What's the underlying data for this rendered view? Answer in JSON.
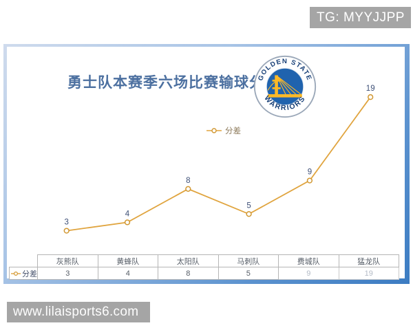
{
  "header": {
    "telegram_label": "TG: MYYJJPP"
  },
  "footer": {
    "website_label": "www.lilaisports6.com"
  },
  "chart_data": {
    "type": "line",
    "title": "勇士队本赛季六场比赛输球分差",
    "categories": [
      "灰熊队",
      "黄蜂队",
      "太阳队",
      "马刺队",
      "费城队",
      "猛龙队"
    ],
    "series": [
      {
        "name": "分差",
        "values": [
          3,
          4,
          8,
          5,
          9,
          19
        ]
      }
    ],
    "data_labels": [
      3,
      4,
      8,
      5,
      9,
      19
    ],
    "legend_position": "top-center",
    "grid": false,
    "axes_hidden": true,
    "ylim": [
      0,
      20
    ],
    "line_color": "#E0A43E",
    "marker_fill": "#FFFFFF",
    "label_color": "#3D4F76"
  },
  "logo": {
    "top_text": "GOLDEN STATE",
    "bottom_text": "WARRIORS",
    "disc_color": "#2063AE",
    "bridge_color": "#FDB927",
    "text_color": "#173F77"
  },
  "table": {
    "row_label": "分差",
    "columns": [
      "灰熊队",
      "黄蜂队",
      "太阳队",
      "马刺队",
      "费城队",
      "猛龙队"
    ],
    "values": [
      "3",
      "4",
      "8",
      "5",
      "9",
      "19"
    ]
  },
  "colors": {
    "title_text": "#4C70A0",
    "panel_frame_light": "#CFDBED",
    "panel_frame_dark": "#3C7CC2",
    "badge_bg": "#A5A5A5"
  }
}
